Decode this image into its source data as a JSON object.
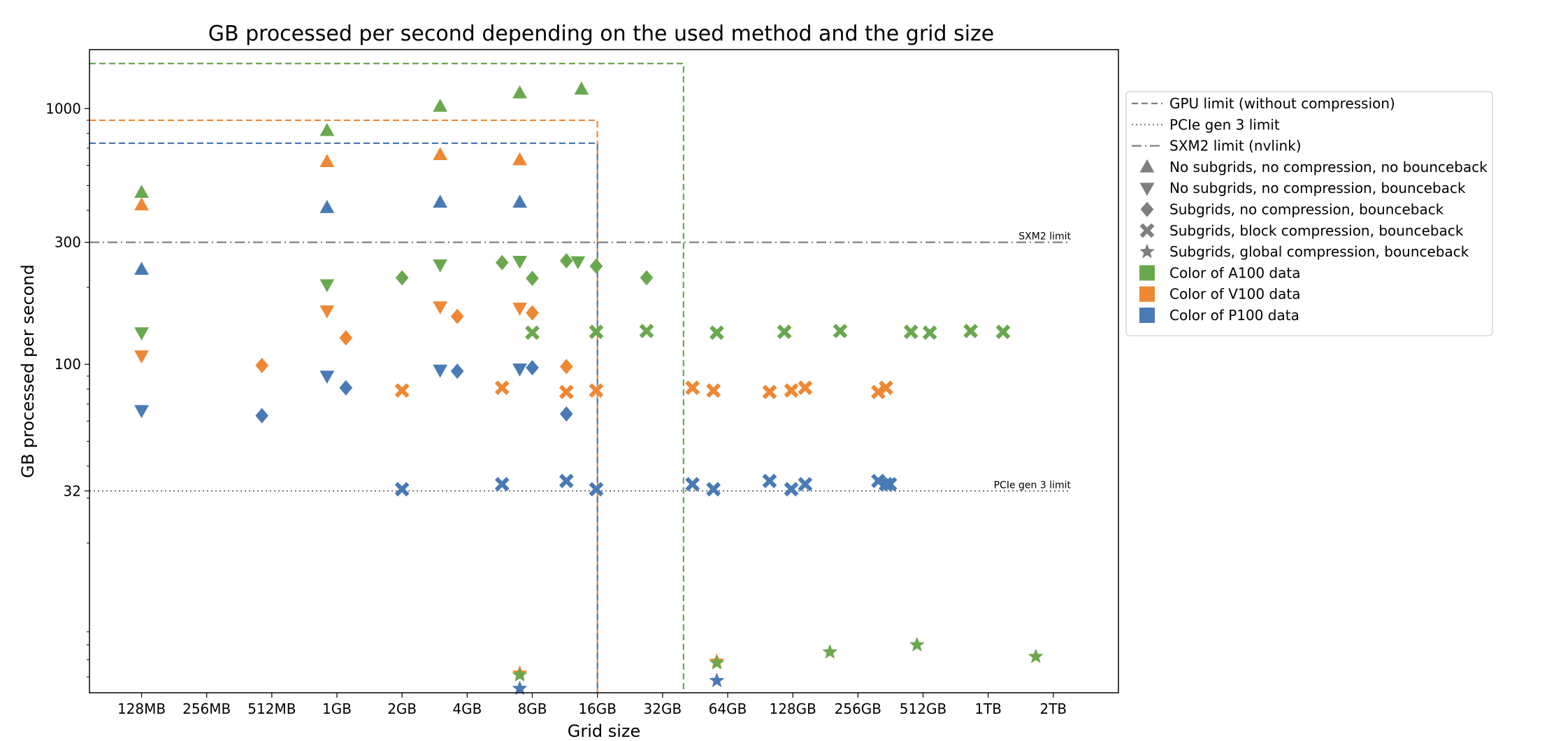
{
  "chart_data": {
    "type": "scatter",
    "title": "GB processed per second depending on the used method and the grid size",
    "xlabel": "Grid size",
    "ylabel": "GB processed per second",
    "x_scale": "log2",
    "y_scale": "log",
    "x_ticks": [
      "128MB",
      "256MB",
      "512MB",
      "1GB",
      "2GB",
      "4GB",
      "8GB",
      "16GB",
      "32GB",
      "64GB",
      "128GB",
      "256GB",
      "512GB",
      "1TB",
      "2TB"
    ],
    "x_tick_values_gb": [
      0.125,
      0.25,
      0.5,
      1,
      2,
      4,
      8,
      16,
      32,
      64,
      128,
      256,
      512,
      1024,
      2048
    ],
    "y_ticks": [
      32,
      100,
      300,
      1000
    ],
    "xlim_gb": [
      0.0718,
      4096
    ],
    "ylim": [
      5.2,
      1700
    ],
    "grid": false,
    "legend_position": "outside right",
    "colors": {
      "A100": "#6aa84f",
      "V100": "#ee8833",
      "P100": "#4a7ab5",
      "reference": "#7f7f7f"
    },
    "reference_lines": [
      {
        "name": "GPU limit (without compression)",
        "style": "dashed",
        "gpu": "A100",
        "bandwidth": 1500,
        "max_grid_gb": 40
      },
      {
        "name": "GPU limit (without compression)",
        "style": "dashed",
        "gpu": "V100",
        "bandwidth": 900,
        "max_grid_gb": 16
      },
      {
        "name": "GPU limit (without compression)",
        "style": "dashed",
        "gpu": "P100",
        "bandwidth": 732,
        "max_grid_gb": 16
      },
      {
        "name": "PCIe gen 3 limit",
        "style": "dotted",
        "value": 32,
        "label": "PCIe gen 3 limit"
      },
      {
        "name": "SXM2 limit (nvlink)",
        "style": "dashdot",
        "value": 300,
        "label": "SXM2 limit"
      }
    ],
    "legend": [
      {
        "kind": "line",
        "style": "dashed",
        "label": "GPU limit (without compression)"
      },
      {
        "kind": "line",
        "style": "dotted",
        "label": "PCIe gen 3 limit"
      },
      {
        "kind": "line",
        "style": "dashdot",
        "label": "SXM2 limit (nvlink)"
      },
      {
        "kind": "marker",
        "marker": "triangle-up",
        "label": "No subgrids, no compression, no bounceback"
      },
      {
        "kind": "marker",
        "marker": "triangle-down",
        "label": "No subgrids, no compression, bounceback"
      },
      {
        "kind": "marker",
        "marker": "diamond",
        "label": "Subgrids, no compression, bounceback"
      },
      {
        "kind": "marker",
        "marker": "x",
        "label": "Subgrids, block compression, bounceback"
      },
      {
        "kind": "marker",
        "marker": "star",
        "label": "Subgrids, global compression, bounceback"
      },
      {
        "kind": "color",
        "color": "A100",
        "label": "Color of A100 data"
      },
      {
        "kind": "color",
        "color": "V100",
        "label": "Color of V100 data"
      },
      {
        "kind": "color",
        "color": "P100",
        "label": "Color of P100 data"
      }
    ],
    "series": [
      {
        "gpu": "A100",
        "method": "triangle-up",
        "points": [
          [
            0.125,
            470
          ],
          [
            0.9,
            820
          ],
          [
            3.0,
            1020
          ],
          [
            7.0,
            1150
          ],
          [
            13.5,
            1190
          ]
        ]
      },
      {
        "gpu": "V100",
        "method": "triangle-up",
        "points": [
          [
            0.125,
            420
          ],
          [
            0.9,
            620
          ],
          [
            3.0,
            660
          ],
          [
            7.0,
            630
          ]
        ]
      },
      {
        "gpu": "P100",
        "method": "triangle-up",
        "points": [
          [
            0.125,
            235
          ],
          [
            0.9,
            410
          ],
          [
            3.0,
            430
          ],
          [
            7.0,
            430
          ]
        ]
      },
      {
        "gpu": "A100",
        "method": "triangle-down",
        "points": [
          [
            0.125,
            133
          ],
          [
            0.9,
            205
          ],
          [
            3.0,
            245
          ],
          [
            7.0,
            253
          ],
          [
            13.0,
            252
          ]
        ]
      },
      {
        "gpu": "V100",
        "method": "triangle-down",
        "points": [
          [
            0.125,
            108
          ],
          [
            0.9,
            162
          ],
          [
            3.0,
            168
          ],
          [
            7.0,
            166
          ]
        ]
      },
      {
        "gpu": "P100",
        "method": "triangle-down",
        "points": [
          [
            0.125,
            66
          ],
          [
            0.9,
            90
          ],
          [
            3.0,
            95
          ],
          [
            7.0,
            96
          ]
        ]
      },
      {
        "gpu": "A100",
        "method": "diamond",
        "points": [
          [
            2.0,
            218
          ],
          [
            5.8,
            250
          ],
          [
            8.0,
            217
          ],
          [
            11.5,
            254
          ],
          [
            15.8,
            242
          ],
          [
            27.0,
            218
          ]
        ]
      },
      {
        "gpu": "V100",
        "method": "diamond",
        "points": [
          [
            0.45,
            99
          ],
          [
            1.1,
            127
          ],
          [
            3.6,
            154
          ],
          [
            8.0,
            159
          ],
          [
            11.5,
            98
          ]
        ]
      },
      {
        "gpu": "P100",
        "method": "diamond",
        "points": [
          [
            0.45,
            63
          ],
          [
            1.1,
            81
          ],
          [
            3.6,
            94
          ],
          [
            8.0,
            97
          ],
          [
            11.5,
            64
          ]
        ]
      },
      {
        "gpu": "A100",
        "method": "x",
        "points": [
          [
            8.0,
            133
          ],
          [
            15.8,
            134
          ],
          [
            27.0,
            135
          ],
          [
            57.0,
            133
          ],
          [
            117.0,
            134
          ],
          [
            212.0,
            135
          ],
          [
            450.0,
            134
          ],
          [
            550.0,
            133
          ],
          [
            850.0,
            135
          ],
          [
            1200.0,
            134
          ]
        ]
      },
      {
        "gpu": "V100",
        "method": "x",
        "points": [
          [
            2.0,
            79
          ],
          [
            5.8,
            81
          ],
          [
            11.5,
            78
          ],
          [
            15.8,
            79
          ],
          [
            44.0,
            81
          ],
          [
            55.0,
            79
          ],
          [
            100.0,
            78
          ],
          [
            126.0,
            79
          ],
          [
            146.0,
            81
          ],
          [
            318.0,
            78
          ],
          [
            345.0,
            81
          ]
        ]
      },
      {
        "gpu": "P100",
        "method": "x",
        "points": [
          [
            2.0,
            32.5
          ],
          [
            5.8,
            34
          ],
          [
            11.5,
            35
          ],
          [
            15.8,
            32.5
          ],
          [
            44.0,
            34
          ],
          [
            55.0,
            32.5
          ],
          [
            100.0,
            35
          ],
          [
            126.0,
            32.5
          ],
          [
            146.0,
            34
          ],
          [
            318.0,
            35
          ],
          [
            345.0,
            34
          ],
          [
            360.0,
            34
          ]
        ]
      },
      {
        "gpu": "V100",
        "method": "star",
        "points": [
          [
            7.0,
            6.2
          ],
          [
            57.0,
            6.9
          ]
        ]
      },
      {
        "gpu": "A100",
        "method": "star",
        "points": [
          [
            7.0,
            6.1
          ],
          [
            57.0,
            6.8
          ],
          [
            190.0,
            7.5
          ],
          [
            480.0,
            8.0
          ],
          [
            1700.0,
            7.2
          ]
        ]
      },
      {
        "gpu": "P100",
        "method": "star",
        "points": [
          [
            7.0,
            5.4
          ],
          [
            57.0,
            5.8
          ]
        ]
      }
    ]
  }
}
